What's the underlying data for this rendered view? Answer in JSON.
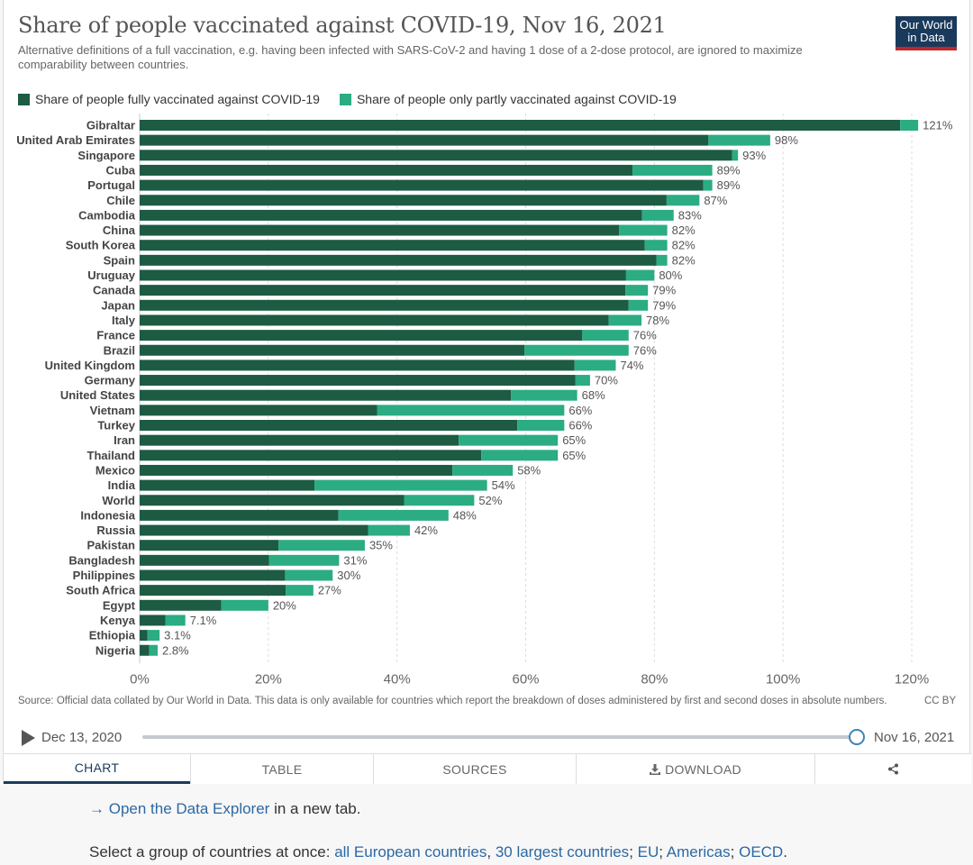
{
  "header": {
    "title": "Share of people vaccinated against COVID-19, Nov 16, 2021",
    "subtitle": "Alternative definitions of a full vaccination, e.g. having been infected with SARS-CoV-2 and having 1 dose of a 2-dose protocol, are ignored to maximize comparability between countries.",
    "logo_line1": "Our World",
    "logo_line2": "in Data"
  },
  "colors": {
    "full": "#1d5b43",
    "partial": "#2bac83",
    "logo_bg": "#1a3a5c",
    "logo_bar": "#c0272d"
  },
  "chart_data": {
    "type": "bar",
    "orientation": "horizontal",
    "stacked": true,
    "xlim": [
      0,
      120
    ],
    "x_ticks": [
      "0%",
      "20%",
      "40%",
      "60%",
      "80%",
      "100%",
      "120%"
    ],
    "grid": true,
    "legend_position": "top-left",
    "series": [
      {
        "name": "Share of people fully vaccinated against COVID-19",
        "color": "#1d5b43"
      },
      {
        "name": "Share of people only partly vaccinated against COVID-19",
        "color": "#2bac83"
      }
    ],
    "rows": [
      {
        "country": "Gibraltar",
        "full": 118.2,
        "partial": 2.8,
        "label": "121%"
      },
      {
        "country": "United Arab Emirates",
        "full": 88.4,
        "partial": 9.6,
        "label": "98%"
      },
      {
        "country": "Singapore",
        "full": 92.1,
        "partial": 0.9,
        "label": "93%"
      },
      {
        "country": "Cuba",
        "full": 76.6,
        "partial": 12.4,
        "label": "89%"
      },
      {
        "country": "Portugal",
        "full": 87.6,
        "partial": 1.4,
        "label": "89%"
      },
      {
        "country": "Chile",
        "full": 81.9,
        "partial": 5.1,
        "label": "87%"
      },
      {
        "country": "Cambodia",
        "full": 78.1,
        "partial": 4.9,
        "label": "83%"
      },
      {
        "country": "China",
        "full": 74.5,
        "partial": 7.5,
        "label": "82%"
      },
      {
        "country": "South Korea",
        "full": 78.5,
        "partial": 3.5,
        "label": "82%"
      },
      {
        "country": "Spain",
        "full": 80.3,
        "partial": 1.7,
        "label": "82%"
      },
      {
        "country": "Uruguay",
        "full": 75.6,
        "partial": 4.4,
        "label": "80%"
      },
      {
        "country": "Canada",
        "full": 75.5,
        "partial": 3.5,
        "label": "79%"
      },
      {
        "country": "Japan",
        "full": 76.0,
        "partial": 3.0,
        "label": "79%"
      },
      {
        "country": "Italy",
        "full": 72.9,
        "partial": 5.1,
        "label": "78%"
      },
      {
        "country": "France",
        "full": 68.8,
        "partial": 7.2,
        "label": "76%"
      },
      {
        "country": "Brazil",
        "full": 59.8,
        "partial": 16.2,
        "label": "76%"
      },
      {
        "country": "United Kingdom",
        "full": 67.6,
        "partial": 6.4,
        "label": "74%"
      },
      {
        "country": "Germany",
        "full": 67.7,
        "partial": 2.3,
        "label": "70%"
      },
      {
        "country": "United States",
        "full": 57.7,
        "partial": 10.3,
        "label": "68%"
      },
      {
        "country": "Vietnam",
        "full": 36.9,
        "partial": 29.1,
        "label": "66%"
      },
      {
        "country": "Turkey",
        "full": 58.7,
        "partial": 7.3,
        "label": "66%"
      },
      {
        "country": "Iran",
        "full": 49.6,
        "partial": 15.4,
        "label": "65%"
      },
      {
        "country": "Thailand",
        "full": 53.1,
        "partial": 11.9,
        "label": "65%"
      },
      {
        "country": "Mexico",
        "full": 48.6,
        "partial": 9.4,
        "label": "58%"
      },
      {
        "country": "India",
        "full": 27.2,
        "partial": 26.8,
        "label": "54%"
      },
      {
        "country": "World",
        "full": 41.1,
        "partial": 10.9,
        "label": "52%"
      },
      {
        "country": "Indonesia",
        "full": 30.9,
        "partial": 17.1,
        "label": "48%"
      },
      {
        "country": "Russia",
        "full": 35.5,
        "partial": 6.5,
        "label": "42%"
      },
      {
        "country": "Pakistan",
        "full": 21.6,
        "partial": 13.4,
        "label": "35%"
      },
      {
        "country": "Bangladesh",
        "full": 20.1,
        "partial": 10.9,
        "label": "31%"
      },
      {
        "country": "Philippines",
        "full": 22.6,
        "partial": 7.4,
        "label": "30%"
      },
      {
        "country": "South Africa",
        "full": 22.7,
        "partial": 4.3,
        "label": "27%"
      },
      {
        "country": "Egypt",
        "full": 12.7,
        "partial": 7.3,
        "label": "20%"
      },
      {
        "country": "Kenya",
        "full": 4.0,
        "partial": 3.1,
        "label": "7.1%"
      },
      {
        "country": "Ethiopia",
        "full": 1.2,
        "partial": 1.9,
        "label": "3.1%"
      },
      {
        "country": "Nigeria",
        "full": 1.5,
        "partial": 1.3,
        "label": "2.8%"
      }
    ]
  },
  "footer": {
    "source": "Source: Official data collated by Our World in Data. This data is only available for countries which report the breakdown of doses administered by first and second doses in absolute numbers.",
    "license": "CC BY"
  },
  "timeline": {
    "start_date": "Dec 13, 2020",
    "end_date": "Nov 16, 2021",
    "position": 1.0
  },
  "tabs": {
    "chart": "CHART",
    "table": "TABLE",
    "sources": "SOURCES",
    "download": "DOWNLOAD"
  },
  "below": {
    "explorer_prefix": "→",
    "explorer_link": "Open the Data Explorer",
    "explorer_suffix": "in a new tab.",
    "groups_prefix": "Select a group of countries at once:",
    "group_european": "all European countries",
    "group_largest": "30 largest countries",
    "group_eu": "EU",
    "group_americas": "Americas",
    "group_oecd": "OECD"
  }
}
